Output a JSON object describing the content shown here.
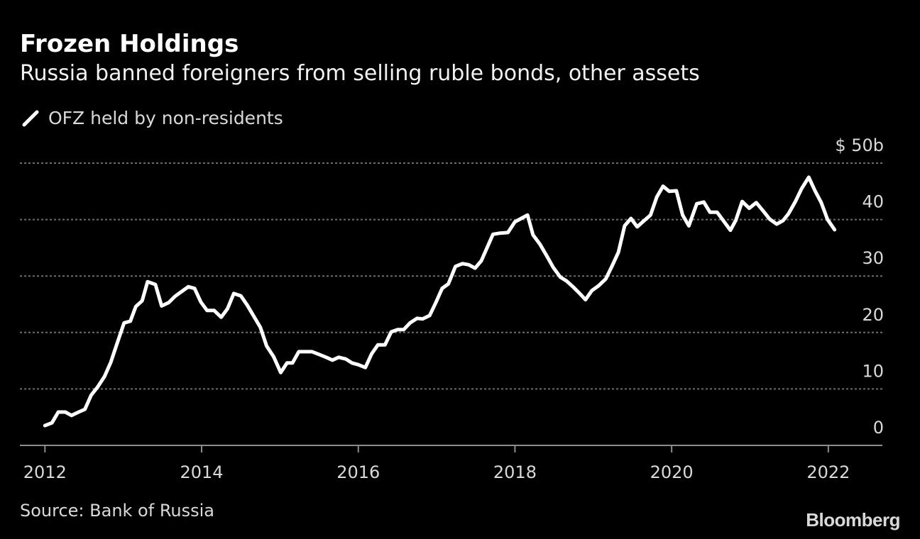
{
  "chart_data": {
    "type": "line",
    "title": "Frozen Holdings",
    "subtitle": "Russia banned foreigners from selling ruble bonds, other assets",
    "series": [
      {
        "name": "OFZ held by non-residents",
        "color": "#ffffff",
        "x": [
          2012.0,
          2012.09,
          2012.17,
          2012.26,
          2012.34,
          2012.43,
          2012.51,
          2012.59,
          2012.67,
          2012.76,
          2012.84,
          2012.92,
          2013.01,
          2013.09,
          2013.16,
          2013.24,
          2013.31,
          2013.41,
          2013.49,
          2013.58,
          2013.66,
          2013.75,
          2013.83,
          2013.91,
          2013.99,
          2014.07,
          2014.16,
          2014.25,
          2014.33,
          2014.41,
          2014.5,
          2014.58,
          2014.66,
          2014.75,
          2014.83,
          2014.92,
          2015.01,
          2015.09,
          2015.16,
          2015.24,
          2015.32,
          2015.41,
          2015.5,
          2015.59,
          2015.67,
          2015.75,
          2015.84,
          2015.92,
          2016.0,
          2016.09,
          2016.17,
          2016.25,
          2016.34,
          2016.42,
          2016.5,
          2016.58,
          2016.66,
          2016.75,
          2016.82,
          2016.91,
          2016.99,
          2017.07,
          2017.15,
          2017.24,
          2017.33,
          2017.41,
          2017.49,
          2017.57,
          2017.64,
          2017.72,
          2017.81,
          2017.91,
          2018.0,
          2018.08,
          2018.16,
          2018.23,
          2018.32,
          2018.4,
          2018.49,
          2018.58,
          2018.66,
          2018.74,
          2018.82,
          2018.9,
          2018.98,
          2019.07,
          2019.16,
          2019.24,
          2019.32,
          2019.4,
          2019.48,
          2019.56,
          2019.64,
          2019.73,
          2019.81,
          2019.89,
          2019.97,
          2020.06,
          2020.14,
          2020.22,
          2020.32,
          2020.41,
          2020.49,
          2020.58,
          2020.66,
          2020.75,
          2020.82,
          2020.9,
          2020.99,
          2021.08,
          2021.17,
          2021.25,
          2021.34,
          2021.42,
          2021.49,
          2021.58,
          2021.66,
          2021.75,
          2021.83,
          2021.91,
          2021.99,
          2022.08
        ],
        "y": [
          3.5,
          4.0,
          5.9,
          5.9,
          5.3,
          5.9,
          6.4,
          8.9,
          10.3,
          12.2,
          14.7,
          18.0,
          21.7,
          22.0,
          24.6,
          25.6,
          29.0,
          28.5,
          24.7,
          25.3,
          26.4,
          27.3,
          28.1,
          27.8,
          25.4,
          23.9,
          23.9,
          22.7,
          24.2,
          26.9,
          26.5,
          24.9,
          23.0,
          20.9,
          17.6,
          15.7,
          12.9,
          14.6,
          14.6,
          16.6,
          16.6,
          16.6,
          16.1,
          15.6,
          15.1,
          15.6,
          15.3,
          14.6,
          14.3,
          13.8,
          16.2,
          17.8,
          17.8,
          20.1,
          20.5,
          20.5,
          21.7,
          22.5,
          22.4,
          23.0,
          25.3,
          27.8,
          28.6,
          31.7,
          32.2,
          32.0,
          31.4,
          32.7,
          34.9,
          37.4,
          37.6,
          37.7,
          39.6,
          40.2,
          40.8,
          37.3,
          35.6,
          33.7,
          31.5,
          29.8,
          29.1,
          28.1,
          27.0,
          25.8,
          27.4,
          28.3,
          29.5,
          31.8,
          34.2,
          38.9,
          40.2,
          38.7,
          39.7,
          40.8,
          44.0,
          45.9,
          45.0,
          45.1,
          40.8,
          38.9,
          42.8,
          43.1,
          41.3,
          41.3,
          39.8,
          38.1,
          39.9,
          43.2,
          42.0,
          43.0,
          41.5,
          40.1,
          39.2,
          39.8,
          41.0,
          43.2,
          45.5,
          47.5,
          45.1,
          43.0,
          40.0,
          38.2
        ]
      }
    ],
    "xticks": [
      "2012",
      "2014",
      "2016",
      "2018",
      "2020",
      "2022"
    ],
    "yticks": [
      "0",
      "10",
      "20",
      "30",
      "40",
      "$ 50b"
    ],
    "xlim": [
      2011.68,
      2022.69
    ],
    "ylim": [
      0,
      50
    ],
    "grid": "horizontal dotted",
    "legend_placement": "top-left"
  },
  "source": "Source: Bank of Russia",
  "logo": "Bloomberg"
}
